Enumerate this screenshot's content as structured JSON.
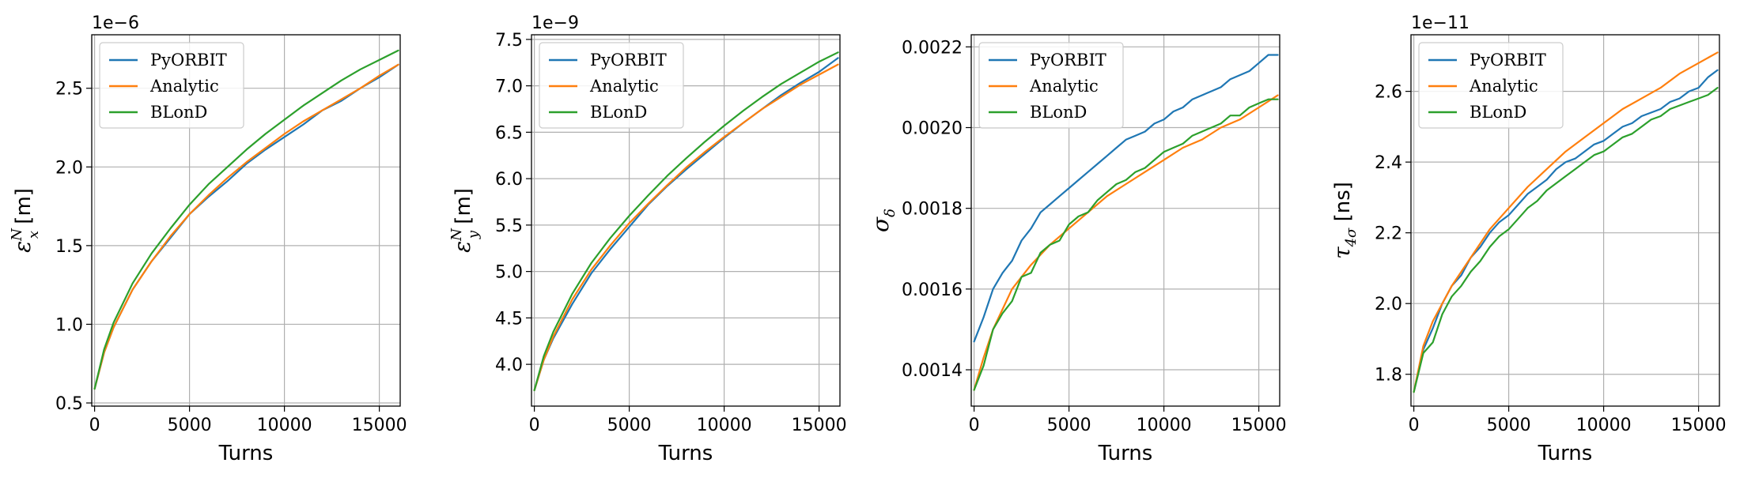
{
  "colors": {
    "PyORBIT": "#1f77b4",
    "Analytic": "#ff7f0e",
    "BLonD": "#2ca02c"
  },
  "chart_data": [
    {
      "type": "line",
      "xlabel": "Turns",
      "ylabel": "εₓᴺ [m]",
      "ylabel_sym": {
        "base": "ε",
        "sub": "x",
        "sup": "N",
        "unit": " [m]"
      },
      "exponent_label": "1e−6",
      "xlim": [
        -150,
        16100
      ],
      "ylim": [
        0.48,
        2.84
      ],
      "grid": true,
      "legend_position": "top-left",
      "xticks": [
        0,
        5000,
        10000,
        15000
      ],
      "xtick_labels": [
        "0",
        "5000",
        "10000",
        "15000"
      ],
      "yticks": [
        0.5,
        1.0,
        1.5,
        2.0,
        2.5
      ],
      "ytick_labels": [
        "0.5",
        "1.0",
        "1.5",
        "2.0",
        "2.5"
      ],
      "legend": [
        "PyORBIT",
        "Analytic",
        "BLonD"
      ],
      "series": [
        {
          "name": "PyORBIT",
          "x": [
            0,
            500,
            1000,
            2000,
            3000,
            4000,
            5000,
            6000,
            7000,
            8000,
            9000,
            10000,
            11000,
            12000,
            13000,
            14000,
            15000,
            16000
          ],
          "y": [
            0.59,
            0.82,
            0.98,
            1.22,
            1.4,
            1.55,
            1.7,
            1.81,
            1.91,
            2.02,
            2.11,
            2.19,
            2.27,
            2.36,
            2.42,
            2.5,
            2.57,
            2.65
          ]
        },
        {
          "name": "Analytic",
          "x": [
            0,
            500,
            1000,
            2000,
            3000,
            4000,
            5000,
            6000,
            7000,
            8000,
            9000,
            10000,
            11000,
            12000,
            13000,
            14000,
            15000,
            16000
          ],
          "y": [
            0.59,
            0.82,
            0.98,
            1.22,
            1.4,
            1.56,
            1.7,
            1.82,
            1.93,
            2.03,
            2.12,
            2.21,
            2.29,
            2.36,
            2.43,
            2.5,
            2.58,
            2.65
          ]
        },
        {
          "name": "BLonD",
          "x": [
            0,
            500,
            1000,
            2000,
            3000,
            4000,
            5000,
            6000,
            7000,
            8000,
            9000,
            10000,
            11000,
            12000,
            13000,
            14000,
            15000,
            16000
          ],
          "y": [
            0.59,
            0.84,
            1.01,
            1.26,
            1.45,
            1.61,
            1.76,
            1.89,
            2.0,
            2.11,
            2.21,
            2.3,
            2.39,
            2.47,
            2.55,
            2.62,
            2.68,
            2.74
          ]
        }
      ]
    },
    {
      "type": "line",
      "xlabel": "Turns",
      "ylabel": "εᵧᴺ [m]",
      "ylabel_sym": {
        "base": "ε",
        "sub": "y",
        "sup": "N",
        "unit": " [m]"
      },
      "exponent_label": "1e−9",
      "xlim": [
        -150,
        16100
      ],
      "ylim": [
        3.55,
        7.55
      ],
      "grid": true,
      "legend_position": "top-left",
      "xticks": [
        0,
        5000,
        10000,
        15000
      ],
      "xtick_labels": [
        "0",
        "5000",
        "10000",
        "15000"
      ],
      "yticks": [
        4.0,
        4.5,
        5.0,
        5.5,
        6.0,
        6.5,
        7.0,
        7.5
      ],
      "ytick_labels": [
        "4.0",
        "4.5",
        "5.0",
        "5.5",
        "6.0",
        "6.5",
        "7.0",
        "7.5"
      ],
      "legend": [
        "PyORBIT",
        "Analytic",
        "BLonD"
      ],
      "series": [
        {
          "name": "PyORBIT",
          "x": [
            0,
            500,
            1000,
            2000,
            3000,
            4000,
            5000,
            6000,
            7000,
            8000,
            9000,
            10000,
            11000,
            12000,
            13000,
            14000,
            15000,
            16000
          ],
          "y": [
            3.72,
            4.05,
            4.28,
            4.65,
            4.98,
            5.24,
            5.48,
            5.72,
            5.92,
            6.1,
            6.27,
            6.44,
            6.6,
            6.75,
            6.9,
            7.03,
            7.15,
            7.3
          ]
        },
        {
          "name": "Analytic",
          "x": [
            0,
            500,
            1000,
            2000,
            3000,
            4000,
            5000,
            6000,
            7000,
            8000,
            9000,
            10000,
            11000,
            12000,
            13000,
            14000,
            15000,
            16000
          ],
          "y": [
            3.72,
            4.05,
            4.3,
            4.7,
            5.02,
            5.28,
            5.52,
            5.73,
            5.93,
            6.12,
            6.29,
            6.45,
            6.6,
            6.75,
            6.88,
            7.01,
            7.12,
            7.23
          ]
        },
        {
          "name": "BLonD",
          "x": [
            0,
            500,
            1000,
            2000,
            3000,
            4000,
            5000,
            6000,
            7000,
            8000,
            9000,
            10000,
            11000,
            12000,
            13000,
            14000,
            15000,
            16000
          ],
          "y": [
            3.72,
            4.09,
            4.35,
            4.76,
            5.09,
            5.36,
            5.6,
            5.82,
            6.03,
            6.22,
            6.4,
            6.57,
            6.73,
            6.88,
            7.02,
            7.14,
            7.26,
            7.36
          ]
        }
      ]
    },
    {
      "type": "line",
      "xlabel": "Turns",
      "ylabel": "σδ",
      "ylabel_sym": {
        "base": "σ",
        "sub": "δ",
        "sup": "",
        "unit": ""
      },
      "exponent_label": "",
      "xlim": [
        -150,
        16100
      ],
      "ylim": [
        0.00131,
        0.00223
      ],
      "grid": true,
      "legend_position": "top-left",
      "xticks": [
        0,
        5000,
        10000,
        15000
      ],
      "xtick_labels": [
        "0",
        "5000",
        "10000",
        "15000"
      ],
      "yticks": [
        0.0014,
        0.0016,
        0.0018,
        0.002,
        0.0022
      ],
      "ytick_labels": [
        "0.0014",
        "0.0016",
        "0.0018",
        "0.0020",
        "0.0022"
      ],
      "legend": [
        "PyORBIT",
        "Analytic",
        "BLonD"
      ],
      "series": [
        {
          "name": "PyORBIT",
          "x": [
            0,
            500,
            1000,
            1500,
            2000,
            2500,
            3000,
            3500,
            4000,
            4500,
            5000,
            5500,
            6000,
            6500,
            7000,
            7500,
            8000,
            8500,
            9000,
            9500,
            10000,
            10500,
            11000,
            11500,
            12000,
            12500,
            13000,
            13500,
            14000,
            14500,
            15000,
            15500,
            16000
          ],
          "y": [
            0.00147,
            0.00153,
            0.0016,
            0.00164,
            0.00167,
            0.00172,
            0.00175,
            0.00179,
            0.00181,
            0.00183,
            0.00185,
            0.00187,
            0.00189,
            0.00191,
            0.00193,
            0.00195,
            0.00197,
            0.00198,
            0.00199,
            0.00201,
            0.00202,
            0.00204,
            0.00205,
            0.00207,
            0.00208,
            0.00209,
            0.0021,
            0.00212,
            0.00213,
            0.00214,
            0.00216,
            0.00218,
            0.00218
          ]
        },
        {
          "name": "Analytic",
          "x": [
            0,
            500,
            1000,
            1500,
            2000,
            3000,
            4000,
            5000,
            6000,
            7000,
            8000,
            9000,
            10000,
            11000,
            12000,
            13000,
            14000,
            15000,
            16000
          ],
          "y": [
            0.00135,
            0.00143,
            0.0015,
            0.00155,
            0.0016,
            0.00166,
            0.00171,
            0.00175,
            0.00179,
            0.00183,
            0.00186,
            0.00189,
            0.00192,
            0.00195,
            0.00197,
            0.002,
            0.00202,
            0.00205,
            0.00208
          ]
        },
        {
          "name": "BLonD",
          "x": [
            0,
            500,
            1000,
            1500,
            2000,
            2500,
            3000,
            3500,
            4000,
            4500,
            5000,
            5500,
            6000,
            6500,
            7000,
            7500,
            8000,
            8500,
            9000,
            9500,
            10000,
            10500,
            11000,
            11500,
            12000,
            12500,
            13000,
            13500,
            14000,
            14500,
            15000,
            15500,
            16000
          ],
          "y": [
            0.00135,
            0.00141,
            0.0015,
            0.00154,
            0.00157,
            0.00163,
            0.00164,
            0.00169,
            0.00171,
            0.00172,
            0.00176,
            0.00178,
            0.00179,
            0.00182,
            0.00184,
            0.00186,
            0.00187,
            0.00189,
            0.0019,
            0.00192,
            0.00194,
            0.00195,
            0.00196,
            0.00198,
            0.00199,
            0.002,
            0.00201,
            0.00203,
            0.00203,
            0.00205,
            0.00206,
            0.00207,
            0.00207
          ]
        }
      ]
    },
    {
      "type": "line",
      "xlabel": "Turns",
      "ylabel": "τ4σ [ns]",
      "ylabel_sym": {
        "base": "τ",
        "sub": "4σ",
        "sup": "",
        "unit": " [ns]"
      },
      "exponent_label": "1e−11",
      "xlim": [
        -150,
        16100
      ],
      "ylim": [
        1.71,
        2.76
      ],
      "grid": true,
      "legend_position": "top-left",
      "xticks": [
        0,
        5000,
        10000,
        15000
      ],
      "xtick_labels": [
        "0",
        "5000",
        "10000",
        "15000"
      ],
      "yticks": [
        1.8,
        2.0,
        2.2,
        2.4,
        2.6
      ],
      "ytick_labels": [
        "1.8",
        "2.0",
        "2.2",
        "2.4",
        "2.6"
      ],
      "legend": [
        "PyORBIT",
        "Analytic",
        "BLonD"
      ],
      "series": [
        {
          "name": "PyORBIT",
          "x": [
            0,
            500,
            1000,
            1500,
            2000,
            2500,
            3000,
            3500,
            4000,
            4500,
            5000,
            5500,
            6000,
            6500,
            7000,
            7500,
            8000,
            8500,
            9000,
            9500,
            10000,
            10500,
            11000,
            11500,
            12000,
            12500,
            13000,
            13500,
            14000,
            14500,
            15000,
            15500,
            16000
          ],
          "y": [
            1.75,
            1.87,
            1.93,
            2.0,
            2.05,
            2.08,
            2.13,
            2.16,
            2.2,
            2.23,
            2.25,
            2.28,
            2.31,
            2.33,
            2.35,
            2.38,
            2.4,
            2.41,
            2.43,
            2.45,
            2.46,
            2.48,
            2.5,
            2.51,
            2.53,
            2.54,
            2.55,
            2.57,
            2.58,
            2.6,
            2.61,
            2.64,
            2.66
          ]
        },
        {
          "name": "Analytic",
          "x": [
            0,
            500,
            1000,
            1500,
            2000,
            3000,
            4000,
            5000,
            6000,
            7000,
            8000,
            9000,
            10000,
            11000,
            12000,
            13000,
            14000,
            15000,
            16000
          ],
          "y": [
            1.75,
            1.88,
            1.95,
            2.0,
            2.05,
            2.13,
            2.21,
            2.27,
            2.33,
            2.38,
            2.43,
            2.47,
            2.51,
            2.55,
            2.58,
            2.61,
            2.65,
            2.68,
            2.71
          ]
        },
        {
          "name": "BLonD",
          "x": [
            0,
            500,
            1000,
            1500,
            2000,
            2500,
            3000,
            3500,
            4000,
            4500,
            5000,
            5500,
            6000,
            6500,
            7000,
            7500,
            8000,
            8500,
            9000,
            9500,
            10000,
            10500,
            11000,
            11500,
            12000,
            12500,
            13000,
            13500,
            14000,
            14500,
            15000,
            15500,
            16000
          ],
          "y": [
            1.75,
            1.86,
            1.89,
            1.97,
            2.02,
            2.05,
            2.09,
            2.12,
            2.16,
            2.19,
            2.21,
            2.24,
            2.27,
            2.29,
            2.32,
            2.34,
            2.36,
            2.38,
            2.4,
            2.42,
            2.43,
            2.45,
            2.47,
            2.48,
            2.5,
            2.52,
            2.53,
            2.55,
            2.56,
            2.57,
            2.58,
            2.59,
            2.61
          ]
        }
      ]
    }
  ]
}
